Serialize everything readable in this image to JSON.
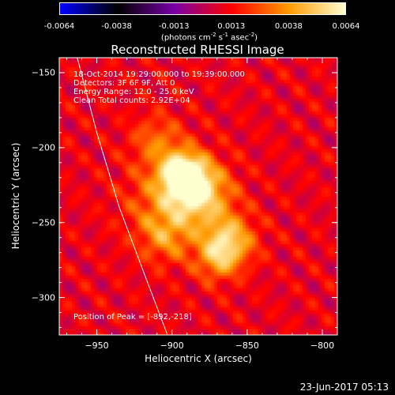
{
  "chart_data": {
    "type": "heatmap",
    "title": "Reconstructed RHESSI Image",
    "xlabel": "Heliocentric X (arcsec)",
    "ylabel": "Heliocentric Y (arcsec)",
    "xlim": [
      -975,
      -790
    ],
    "ylim": [
      -325,
      -140
    ],
    "x_ticks": [
      -950,
      -900,
      -850,
      -800
    ],
    "y_ticks": [
      -150,
      -200,
      -250,
      -300
    ],
    "colorbar": {
      "range": [
        -0.0064,
        0.0064
      ],
      "ticks": [
        "-0.0064",
        "-0.0038",
        "-0.0013",
        "0.0013",
        "0.0038",
        "0.0064"
      ],
      "units_prefix": "(photons cm",
      "units_exp1": "-2",
      "units_mid1": " s",
      "units_exp2": "-1",
      "units_mid2": " asec",
      "units_exp3": "-2",
      "units_suffix": ")",
      "colors": [
        "#0000ff",
        "#000000",
        "#7a00a8",
        "#ff0000",
        "#ff9a00",
        "#ffffd0"
      ]
    },
    "annotations": [
      "18-Oct-2014 19:29:00.000 to 19:39:00.000",
      "Detectors: 3F 6F 9F, Att 0",
      "Energy Range: 12.0 - 25.0 keV",
      "Clean    Total counts: 2.92E+04"
    ],
    "peak_label": "Position of Peak = [-892,-218]",
    "peak": [
      -892,
      -218
    ],
    "sources": [
      {
        "x": -892,
        "y": -218,
        "intensity": 1.0,
        "sigma": 10
      },
      {
        "x": -880,
        "y": -230,
        "intensity": 0.6,
        "sigma": 14
      },
      {
        "x": -862,
        "y": -262,
        "intensity": 0.7,
        "sigma": 12
      },
      {
        "x": -900,
        "y": -235,
        "intensity": 0.5,
        "sigma": 20
      },
      {
        "x": -870,
        "y": -275,
        "intensity": 0.45,
        "sigma": 10
      },
      {
        "x": -905,
        "y": -260,
        "intensity": 0.35,
        "sigma": 12
      },
      {
        "x": -910,
        "y": -195,
        "intensity": 0.35,
        "sigma": 12
      }
    ],
    "limb_curve": [
      [
        -963,
        -140
      ],
      [
        -950,
        -190
      ],
      [
        -935,
        -240
      ],
      [
        -920,
        -280
      ],
      [
        -903,
        -325
      ]
    ]
  },
  "timestamp": "23-Jun-2017 05:13"
}
